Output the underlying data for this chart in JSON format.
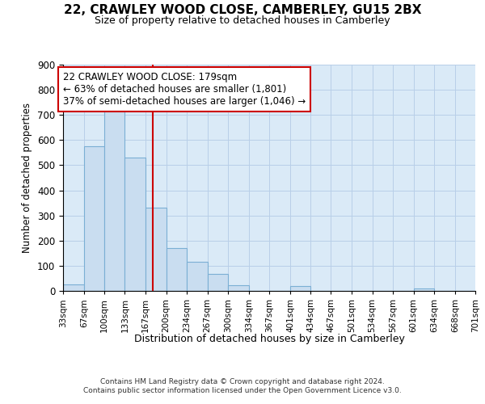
{
  "title1": "22, CRAWLEY WOOD CLOSE, CAMBERLEY, GU15 2BX",
  "title2": "Size of property relative to detached houses in Camberley",
  "xlabel": "Distribution of detached houses by size in Camberley",
  "ylabel": "Number of detached properties",
  "bar_color": "#c9ddf0",
  "bar_edge_color": "#7bafd4",
  "grid_color": "#b8cfe8",
  "bg_color": "#daeaf7",
  "vline_x": 179,
  "vline_color": "#cc0000",
  "annotation_text": "22 CRAWLEY WOOD CLOSE: 179sqm\n← 63% of detached houses are smaller (1,801)\n37% of semi-detached houses are larger (1,046) →",
  "annotation_box_color": "#cc0000",
  "footnote1": "Contains HM Land Registry data © Crown copyright and database right 2024.",
  "footnote2": "Contains public sector information licensed under the Open Government Licence v3.0.",
  "bin_edges": [
    33,
    67,
    100,
    133,
    167,
    200,
    234,
    267,
    300,
    334,
    367,
    401,
    434,
    467,
    501,
    534,
    567,
    601,
    634,
    668,
    701
  ],
  "bin_counts": [
    27,
    575,
    740,
    530,
    330,
    170,
    115,
    67,
    22,
    0,
    0,
    18,
    0,
    0,
    0,
    0,
    0,
    10,
    0,
    0
  ],
  "ylim": [
    0,
    900
  ],
  "yticks": [
    0,
    100,
    200,
    300,
    400,
    500,
    600,
    700,
    800,
    900
  ]
}
